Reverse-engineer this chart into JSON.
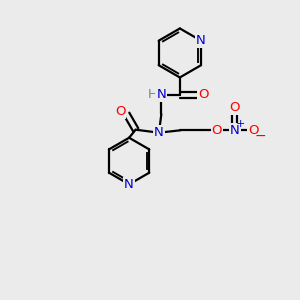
{
  "bg_color": "#ebebeb",
  "bond_color": "#000000",
  "bond_width": 1.6,
  "atom_colors": {
    "N": "#0000cc",
    "O": "#ff0000",
    "H": "#6a8a8a"
  },
  "font_size": 9.5
}
